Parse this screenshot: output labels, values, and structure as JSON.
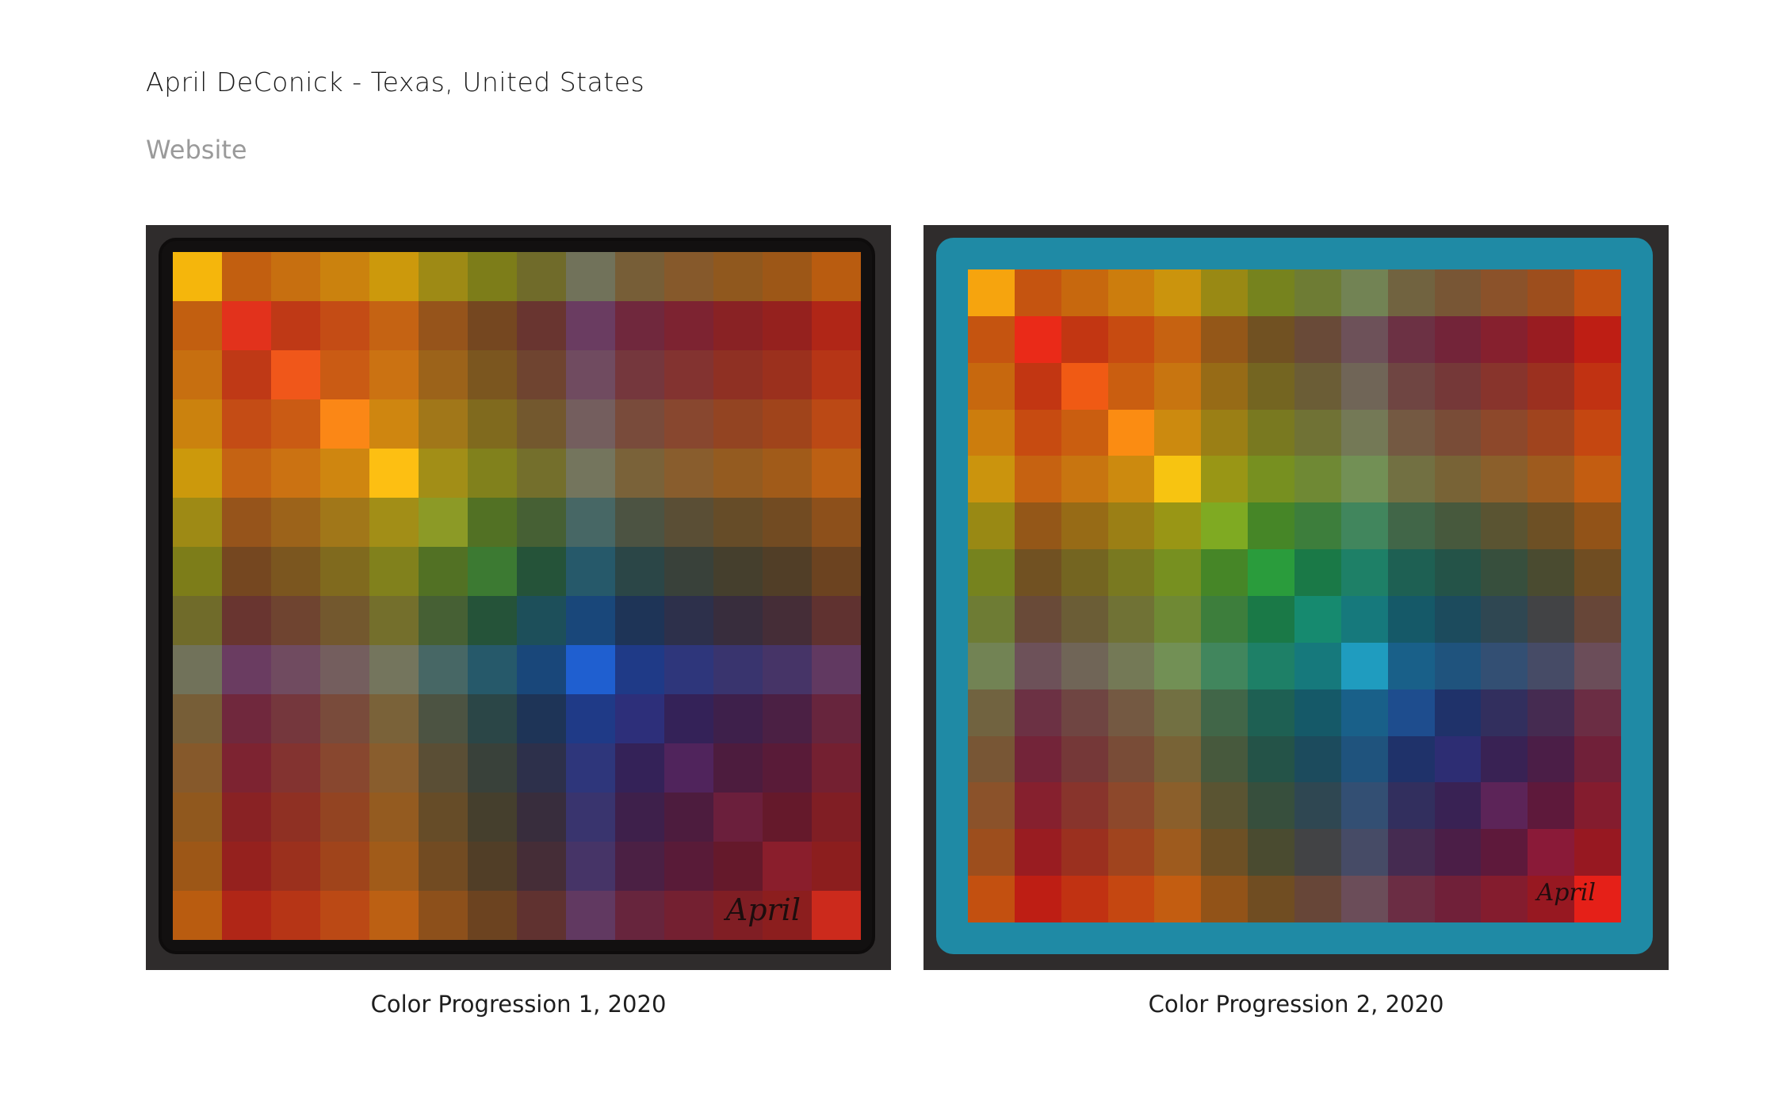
{
  "artist": {
    "heading": "April DeConick - Texas, United States",
    "website_label": "Website"
  },
  "artworks": [
    {
      "caption": "Color Progression 1, 2020",
      "signature": "April",
      "palette_colors": [
        "#f5b60c",
        "#e2321c",
        "#f0571a",
        "#fb8716",
        "#fdbf12",
        "#8c9a26",
        "#3c7a32",
        "#1d4f5a",
        "#1f5fd0",
        "#2d2f7a",
        "#50245c",
        "#6b1f3c",
        "#8a1e2c",
        "#cc2a1c"
      ]
    },
    {
      "caption": "Color Progression 2, 2020",
      "signature": "April",
      "border_color": "#1f8aa5",
      "palette_colors": [
        "#f6a40e",
        "#ea2a18",
        "#f05a14",
        "#fb8c12",
        "#f7c411",
        "#7faa22",
        "#2a9c3c",
        "#168a6f",
        "#1f9cbf",
        "#1e4d8e",
        "#2d2d73",
        "#5c2458",
        "#8a1a38",
        "#e52018"
      ]
    }
  ]
}
